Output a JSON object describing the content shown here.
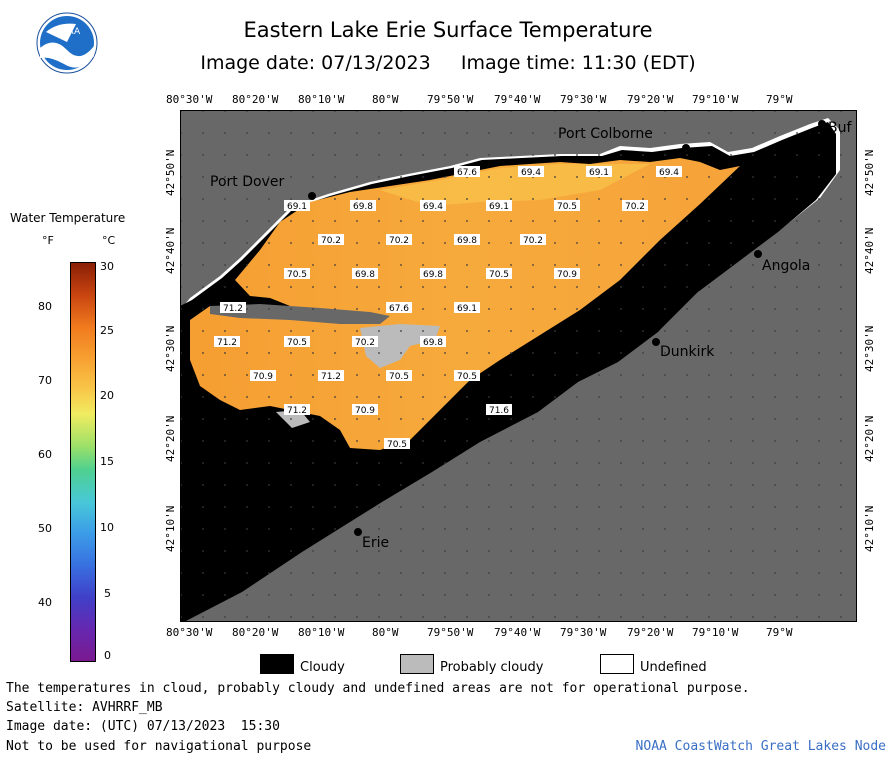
{
  "header": {
    "title": "Eastern Lake Erie Surface Temperature",
    "subtitle": "Image date: 07/13/2023     Image time: 11:30 (EDT)",
    "logo_text": "NOAA"
  },
  "map": {
    "longitude_ticks": [
      "80°30'W",
      "80°20'W",
      "80°10'W",
      "80°W",
      "79°50'W",
      "79°40'W",
      "79°30'W",
      "79°20'W",
      "79°10'W",
      "79°W"
    ],
    "latitude_ticks": [
      "42°50'N",
      "42°40'N",
      "42°30'N",
      "42°20'N",
      "42°10'N"
    ],
    "cities": [
      {
        "name": "Port Colborne"
      },
      {
        "name": "Buf"
      },
      {
        "name": "Port Dover"
      },
      {
        "name": "Angola"
      },
      {
        "name": "Dunkirk"
      },
      {
        "name": "Erie"
      }
    ],
    "temperature_labels": [
      "67.6",
      "69.4",
      "69.1",
      "69.4",
      "69.1",
      "69.8",
      "69.4",
      "69.1",
      "70.5",
      "70.2",
      "70.2",
      "70.2",
      "69.8",
      "70.2",
      "70.5",
      "69.8",
      "69.8",
      "70.5",
      "70.9",
      "71.2",
      "67.6",
      "69.1",
      "71.2",
      "70.5",
      "70.2",
      "69.8",
      "70.9",
      "71.2",
      "70.5",
      "70.5",
      "71.2",
      "70.9",
      "71.6",
      "70.5"
    ],
    "colors": {
      "water_warm": "#f7a93b",
      "water_mid": "#f8c34a",
      "cloud": "#000000",
      "land": "#666666",
      "probably_cloudy": "#bbbbbb",
      "undefined": "#ffffff"
    }
  },
  "colorbar": {
    "title": "Water Temperature",
    "unit_f": "°F",
    "unit_c": "°C",
    "f_ticks": [
      "80",
      "70",
      "60",
      "50",
      "40"
    ],
    "c_ticks": [
      "30",
      "25",
      "20",
      "15",
      "10",
      "5",
      "0"
    ]
  },
  "legend": {
    "items": [
      {
        "label": "Cloudy",
        "color": "#000000"
      },
      {
        "label": "Probably cloudy",
        "color": "#bbbbbb"
      },
      {
        "label": "Undefined",
        "color": "#ffffff"
      }
    ]
  },
  "footer": {
    "line1": "The temperatures in cloud, probably cloudy and undefined areas are not for operational purpose.",
    "line2": "Satellite: AVHRRF_MB",
    "line3": "Image date: (UTC) 07/13/2023  15:30",
    "line4": "Not to be used for navigational purpose",
    "credit": "NOAA CoastWatch Great Lakes Node"
  }
}
